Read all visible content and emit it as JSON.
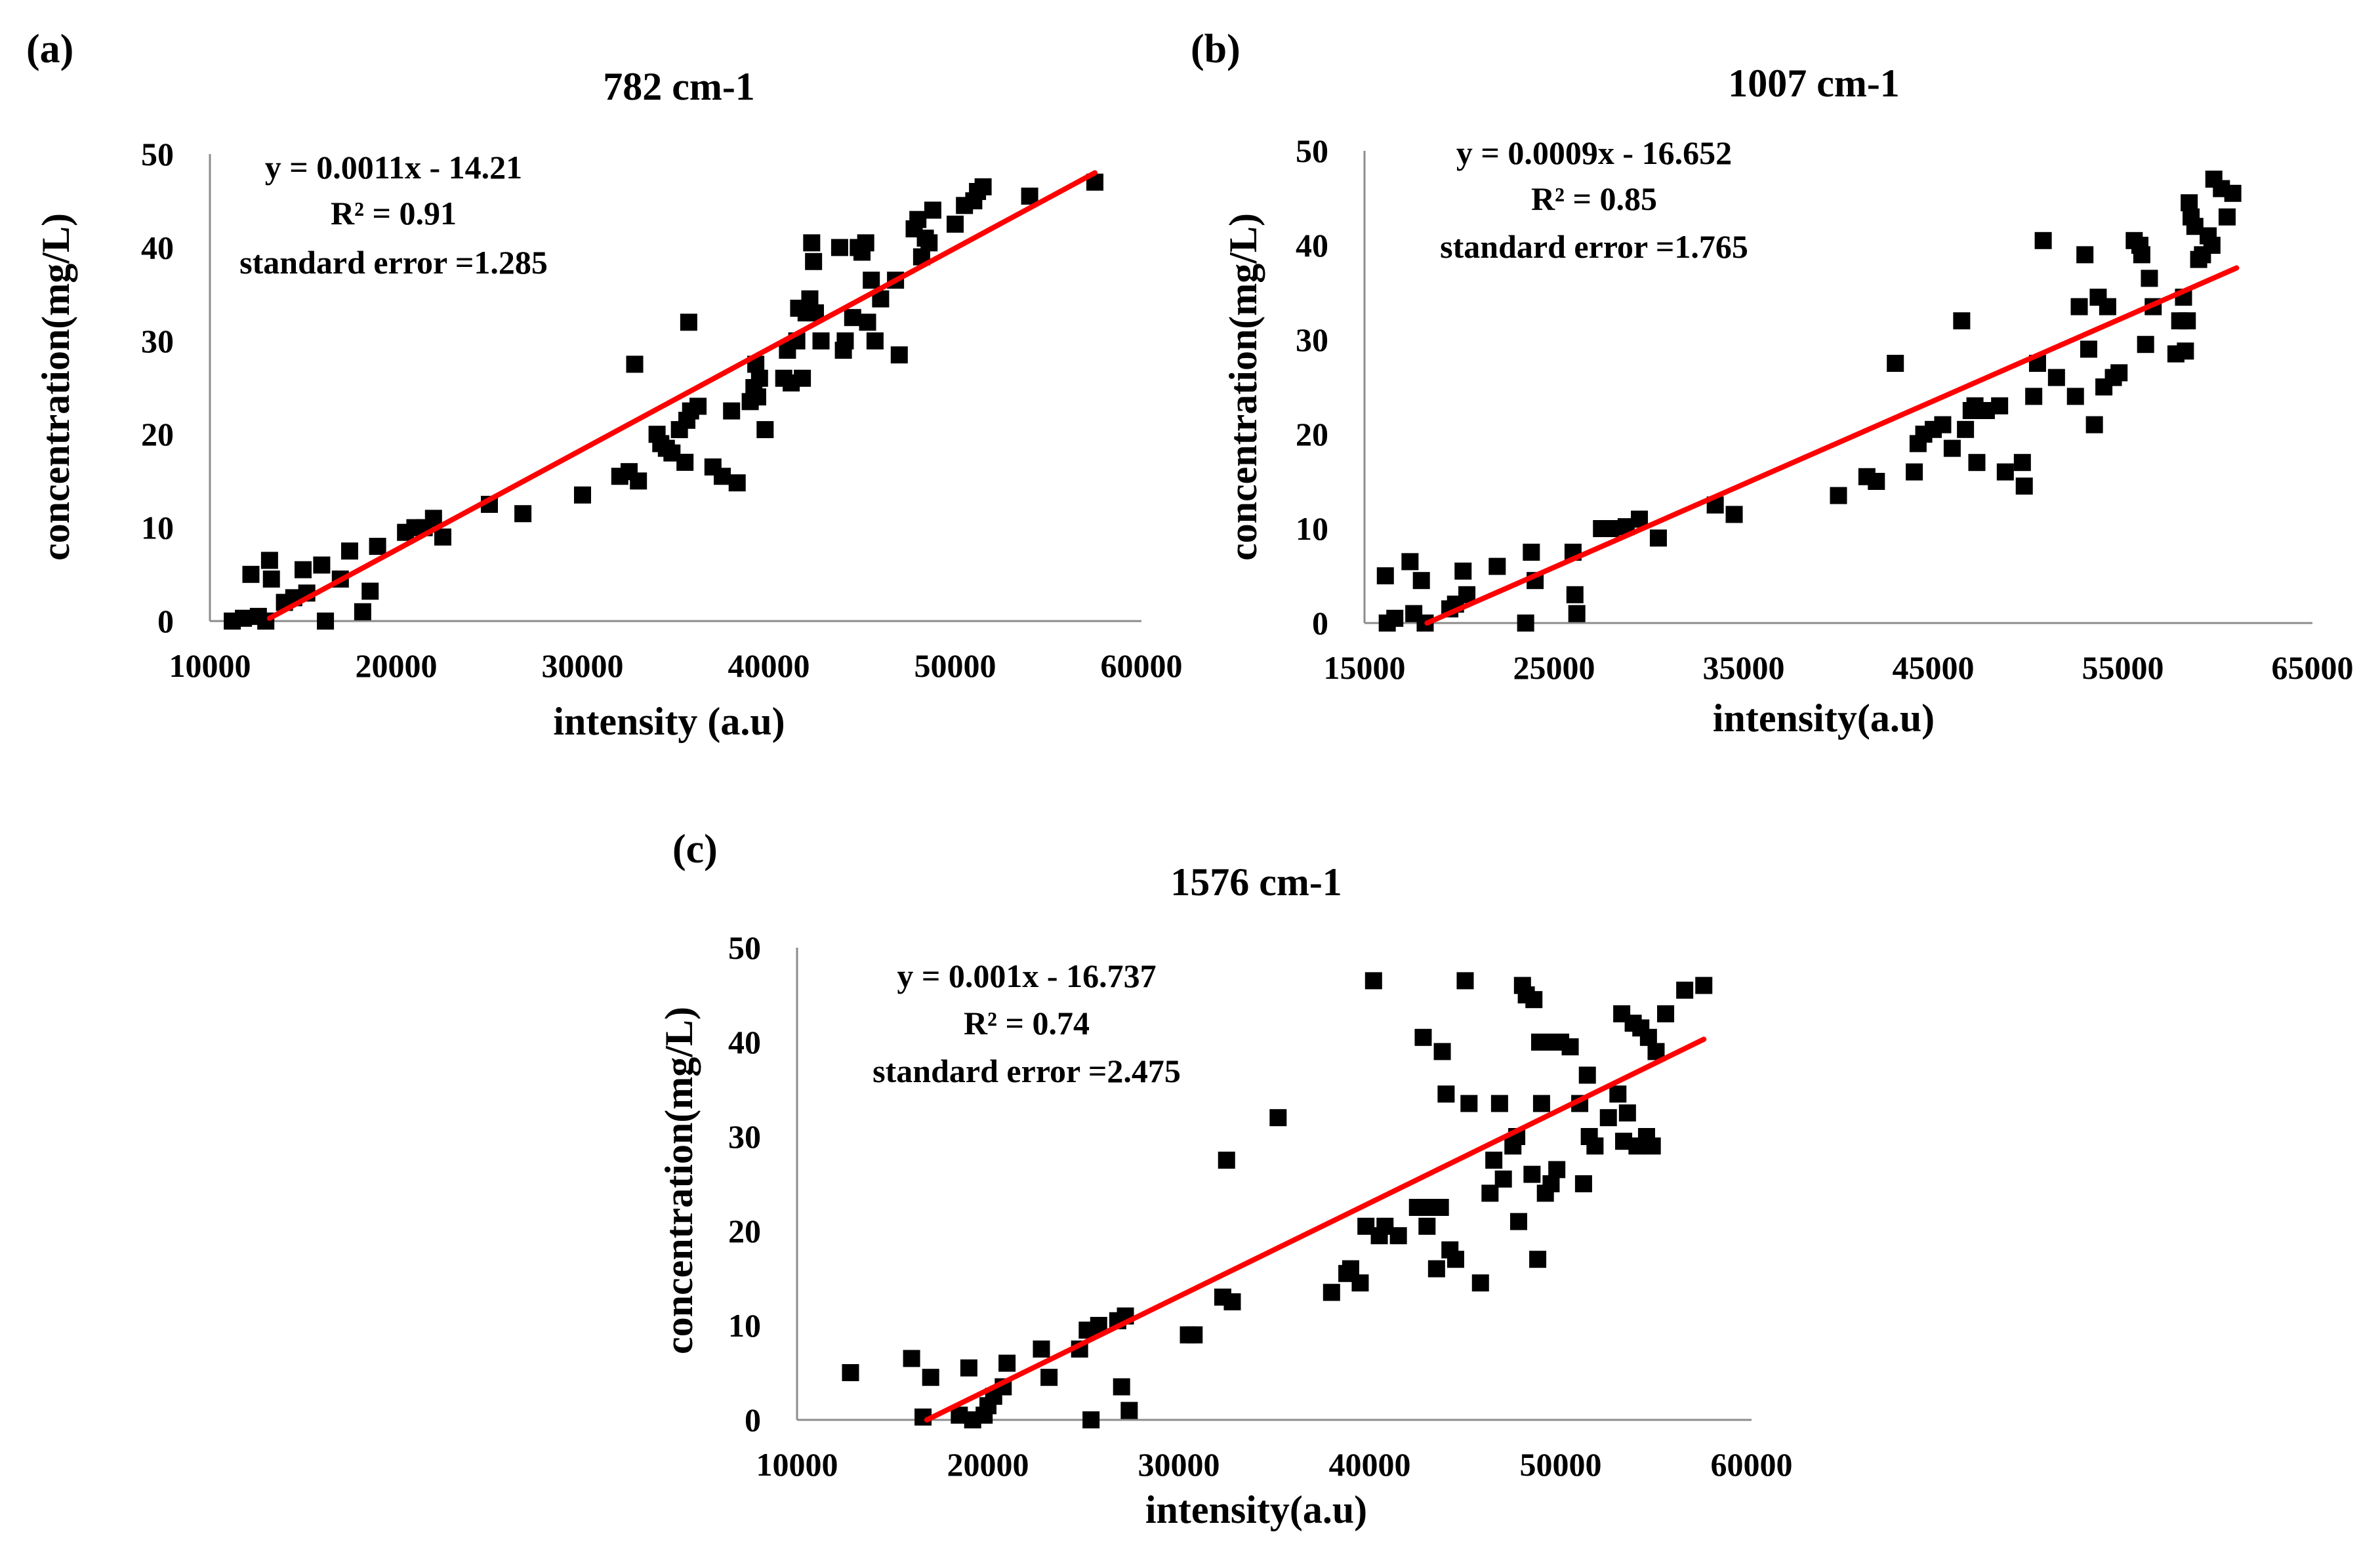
{
  "chart_data": [
    {
      "type": "scatter",
      "panel_label": "(a)",
      "title": "782 cm-1",
      "xlabel": "intensity (a.u)",
      "ylabel": "concentration(mg/L)",
      "xlim": [
        10000,
        60000
      ],
      "ylim": [
        0,
        50
      ],
      "xticks": [
        "10000",
        "20000",
        "30000",
        "40000",
        "50000",
        "60000"
      ],
      "yticks": [
        "0",
        "10",
        "20",
        "30",
        "40",
        "50"
      ],
      "annotations": [
        "y = 0.0011x - 14.21",
        "R² = 0.91",
        "standard  error =1.285"
      ],
      "trendline": {
        "x": [
          13200,
          57500
        ],
        "y": [
          0.3,
          48.0
        ],
        "color": "#ff0000"
      },
      "marker_color": "#000000",
      "points": [
        [
          11200,
          0
        ],
        [
          11800,
          0.3
        ],
        [
          12200,
          5
        ],
        [
          12600,
          0.5
        ],
        [
          13000,
          0
        ],
        [
          13200,
          6.5
        ],
        [
          13300,
          4.5
        ],
        [
          14000,
          2
        ],
        [
          14500,
          2.5
        ],
        [
          15000,
          5.5
        ],
        [
          15200,
          3
        ],
        [
          16000,
          6
        ],
        [
          16200,
          0
        ],
        [
          17000,
          4.5
        ],
        [
          17500,
          7.5
        ],
        [
          18200,
          1
        ],
        [
          18600,
          3.2
        ],
        [
          19000,
          8
        ],
        [
          20500,
          9.5
        ],
        [
          21000,
          10
        ],
        [
          21500,
          10
        ],
        [
          22000,
          11
        ],
        [
          22500,
          9
        ],
        [
          25000,
          12.5
        ],
        [
          26800,
          11.5
        ],
        [
          30000,
          13.5
        ],
        [
          32000,
          15.5
        ],
        [
          32500,
          16
        ],
        [
          32800,
          27.5
        ],
        [
          33000,
          15
        ],
        [
          34000,
          20
        ],
        [
          34200,
          19
        ],
        [
          34500,
          18.5
        ],
        [
          34800,
          18
        ],
        [
          35200,
          20.5
        ],
        [
          35500,
          17
        ],
        [
          35600,
          21.5
        ],
        [
          35700,
          32
        ],
        [
          35800,
          22.5
        ],
        [
          36200,
          23
        ],
        [
          37000,
          16.5
        ],
        [
          37500,
          15.5
        ],
        [
          38000,
          22.5
        ],
        [
          38300,
          14.8
        ],
        [
          39000,
          23.5
        ],
        [
          39200,
          25
        ],
        [
          39300,
          27.5
        ],
        [
          39400,
          24
        ],
        [
          39500,
          26
        ],
        [
          39800,
          20.5
        ],
        [
          40800,
          26
        ],
        [
          41000,
          29
        ],
        [
          41200,
          25.5
        ],
        [
          41500,
          30
        ],
        [
          41600,
          33.5
        ],
        [
          41800,
          26
        ],
        [
          42000,
          33
        ],
        [
          42200,
          34.5
        ],
        [
          42300,
          40.5
        ],
        [
          42400,
          38.5
        ],
        [
          42500,
          33
        ],
        [
          42800,
          30
        ],
        [
          43800,
          40
        ],
        [
          44000,
          29
        ],
        [
          44100,
          30
        ],
        [
          44500,
          32.5
        ],
        [
          44800,
          40
        ],
        [
          45000,
          39.5
        ],
        [
          45200,
          40.5
        ],
        [
          45300,
          32
        ],
        [
          45500,
          36.5
        ],
        [
          45700,
          30
        ],
        [
          46000,
          34.5
        ],
        [
          46800,
          36.5
        ],
        [
          47000,
          28.5
        ],
        [
          47800,
          42
        ],
        [
          48000,
          43
        ],
        [
          48200,
          39
        ],
        [
          48400,
          41
        ],
        [
          48600,
          40.5
        ],
        [
          48800,
          44
        ],
        [
          50000,
          42.5
        ],
        [
          50500,
          44.5
        ],
        [
          51000,
          45
        ],
        [
          51200,
          46
        ],
        [
          51500,
          46.5
        ],
        [
          54000,
          45.5
        ],
        [
          57500,
          47
        ]
      ]
    },
    {
      "type": "scatter",
      "panel_label": "(b)",
      "title": "1007 cm-1",
      "xlabel": "intensity(a.u)",
      "ylabel": "concentration(mg/L)",
      "xlim": [
        15000,
        65000
      ],
      "ylim": [
        0,
        50
      ],
      "xticks": [
        "15000",
        "25000",
        "35000",
        "45000",
        "55000",
        "65000"
      ],
      "yticks": [
        "0",
        "10",
        "20",
        "30",
        "40",
        "50"
      ],
      "annotations": [
        "y = 0.0009x - 16.652",
        "R² = 0.85",
        "standard  error =1.765"
      ],
      "trendline": {
        "x": [
          18300,
          61000
        ],
        "y": [
          0,
          37.6
        ],
        "color": "#ff0000"
      },
      "marker_color": "#000000",
      "points": [
        [
          16100,
          5
        ],
        [
          16200,
          0
        ],
        [
          16600,
          0.5
        ],
        [
          17400,
          6.5
        ],
        [
          17600,
          1
        ],
        [
          18000,
          4.5
        ],
        [
          18200,
          0
        ],
        [
          19500,
          1.5
        ],
        [
          19800,
          2
        ],
        [
          20200,
          5.5
        ],
        [
          20400,
          3
        ],
        [
          22000,
          6
        ],
        [
          23500,
          0
        ],
        [
          23800,
          7.5
        ],
        [
          24000,
          4.5
        ],
        [
          26000,
          7.5
        ],
        [
          26100,
          3
        ],
        [
          26200,
          1
        ],
        [
          27500,
          10
        ],
        [
          28000,
          10
        ],
        [
          28800,
          10.2
        ],
        [
          29500,
          11
        ],
        [
          30500,
          9
        ],
        [
          33500,
          12.5
        ],
        [
          34500,
          11.5
        ],
        [
          40000,
          13.5
        ],
        [
          41500,
          15.5
        ],
        [
          42000,
          15
        ],
        [
          43000,
          27.5
        ],
        [
          44000,
          16
        ],
        [
          44200,
          19
        ],
        [
          44500,
          20
        ],
        [
          45000,
          20.5
        ],
        [
          45500,
          21
        ],
        [
          46000,
          18.5
        ],
        [
          46500,
          32
        ],
        [
          46700,
          20.5
        ],
        [
          47000,
          22.5
        ],
        [
          47200,
          23
        ],
        [
          47300,
          17
        ],
        [
          47800,
          22.5
        ],
        [
          48500,
          23
        ],
        [
          48800,
          16
        ],
        [
          49700,
          17
        ],
        [
          49800,
          14.5
        ],
        [
          50300,
          24
        ],
        [
          50500,
          27.5
        ],
        [
          50800,
          40.5
        ],
        [
          51500,
          26
        ],
        [
          52500,
          24
        ],
        [
          52700,
          33.5
        ],
        [
          53000,
          39
        ],
        [
          53200,
          29
        ],
        [
          53500,
          21
        ],
        [
          53700,
          34.5
        ],
        [
          54000,
          25
        ],
        [
          54200,
          33.5
        ],
        [
          54500,
          26
        ],
        [
          54800,
          26.5
        ],
        [
          55600,
          40.5
        ],
        [
          55900,
          40
        ],
        [
          56000,
          39
        ],
        [
          56200,
          29.5
        ],
        [
          56400,
          36.5
        ],
        [
          56600,
          33.5
        ],
        [
          57800,
          28.5
        ],
        [
          58000,
          32
        ],
        [
          58200,
          34.5
        ],
        [
          58300,
          28.8
        ],
        [
          58400,
          32
        ],
        [
          58500,
          44.5
        ],
        [
          58600,
          43
        ],
        [
          58800,
          42
        ],
        [
          59000,
          38.5
        ],
        [
          59200,
          39
        ],
        [
          59500,
          41
        ],
        [
          59700,
          40
        ],
        [
          59800,
          47
        ],
        [
          60200,
          46
        ],
        [
          60500,
          43
        ],
        [
          60800,
          45.5
        ]
      ]
    },
    {
      "type": "scatter",
      "panel_label": "(c)",
      "title": "1576 cm-1",
      "xlabel": "intensity(a.u)",
      "ylabel": "concentration(mg/L)",
      "xlim": [
        10000,
        60000
      ],
      "ylim": [
        0,
        50
      ],
      "xticks": [
        "10000",
        "20000",
        "30000",
        "40000",
        "50000",
        "60000"
      ],
      "yticks": [
        "0",
        "10",
        "20",
        "30",
        "40",
        "50"
      ],
      "annotations": [
        "y = 0.001x - 16.737",
        "R² = 0.74",
        "standard  error =2.475"
      ],
      "trendline": {
        "x": [
          16800,
          57500
        ],
        "y": [
          0,
          40.3
        ],
        "color": "#ff0000"
      },
      "marker_color": "#000000",
      "points": [
        [
          12800,
          5
        ],
        [
          16000,
          6.5
        ],
        [
          16600,
          0.3
        ],
        [
          17000,
          4.5
        ],
        [
          18500,
          0.5
        ],
        [
          19000,
          5.5
        ],
        [
          19200,
          0
        ],
        [
          19800,
          0.5
        ],
        [
          20000,
          1.5
        ],
        [
          20300,
          2.5
        ],
        [
          20800,
          3.5
        ],
        [
          21000,
          6
        ],
        [
          22800,
          7.5
        ],
        [
          23200,
          4.5
        ],
        [
          24800,
          7.5
        ],
        [
          25200,
          9.5
        ],
        [
          25400,
          0
        ],
        [
          25800,
          10
        ],
        [
          26800,
          10.5
        ],
        [
          27000,
          3.5
        ],
        [
          27200,
          11
        ],
        [
          27400,
          1
        ],
        [
          30500,
          9
        ],
        [
          30800,
          9
        ],
        [
          32300,
          13
        ],
        [
          32500,
          27.5
        ],
        [
          32800,
          12.5
        ],
        [
          35200,
          32
        ],
        [
          38000,
          13.5
        ],
        [
          38800,
          15.5
        ],
        [
          39000,
          16
        ],
        [
          39500,
          14.5
        ],
        [
          39800,
          20.5
        ],
        [
          40200,
          46.5
        ],
        [
          40500,
          19.5
        ],
        [
          40800,
          20.5
        ],
        [
          41500,
          19.5
        ],
        [
          42500,
          22.5
        ],
        [
          42800,
          40.5
        ],
        [
          43000,
          20.5
        ],
        [
          43200,
          22.5
        ],
        [
          43500,
          16
        ],
        [
          43700,
          22.5
        ],
        [
          43800,
          39
        ],
        [
          44000,
          34.5
        ],
        [
          44200,
          18
        ],
        [
          44500,
          17
        ],
        [
          45000,
          46.5
        ],
        [
          45200,
          33.5
        ],
        [
          45800,
          14.5
        ],
        [
          46300,
          24
        ],
        [
          46500,
          27.5
        ],
        [
          46800,
          33.5
        ],
        [
          47000,
          25.5
        ],
        [
          47500,
          29
        ],
        [
          47700,
          30
        ],
        [
          47800,
          21
        ],
        [
          48000,
          46
        ],
        [
          48200,
          45
        ],
        [
          48500,
          26
        ],
        [
          48600,
          44.5
        ],
        [
          48800,
          17
        ],
        [
          48900,
          40
        ],
        [
          49000,
          33.5
        ],
        [
          49200,
          24
        ],
        [
          49500,
          25
        ],
        [
          49600,
          40
        ],
        [
          49800,
          26.5
        ],
        [
          50000,
          40
        ],
        [
          50500,
          39.5
        ],
        [
          51000,
          33.5
        ],
        [
          51200,
          25
        ],
        [
          51400,
          36.5
        ],
        [
          51500,
          30
        ],
        [
          51800,
          29
        ],
        [
          52500,
          32
        ],
        [
          53000,
          34.5
        ],
        [
          53200,
          43
        ],
        [
          53300,
          29.5
        ],
        [
          53500,
          32.5
        ],
        [
          53800,
          42
        ],
        [
          54000,
          29
        ],
        [
          54200,
          41.5
        ],
        [
          54500,
          30
        ],
        [
          54600,
          40.5
        ],
        [
          54800,
          29
        ],
        [
          55000,
          39
        ],
        [
          55500,
          43
        ],
        [
          56500,
          45.5
        ],
        [
          57500,
          46
        ]
      ]
    }
  ]
}
